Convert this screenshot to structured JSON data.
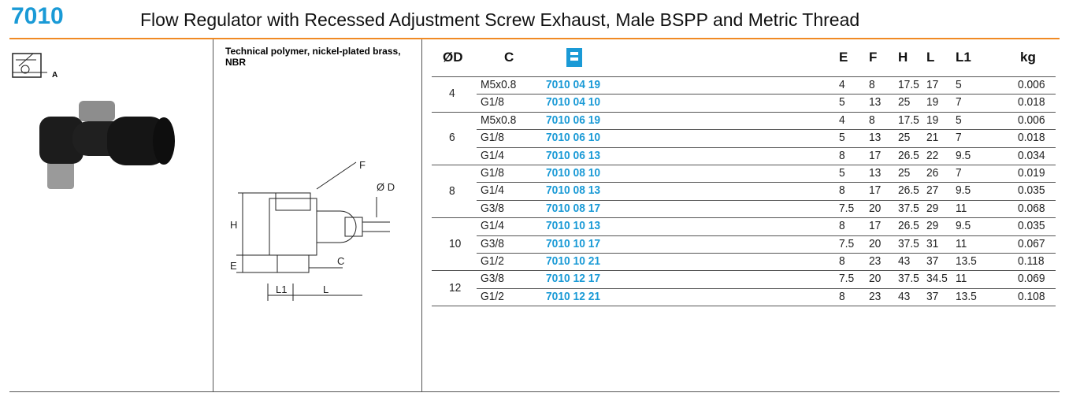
{
  "header": {
    "code": "7010",
    "title": "Flow Regulator with Recessed Adjustment Screw Exhaust, Male BSPP and Metric Thread"
  },
  "symbol": {
    "label": "A"
  },
  "material": "Technical polymer, nickel-plated brass, NBR",
  "diagram": {
    "labels": {
      "f": "F",
      "d": "Ø D",
      "h": "H",
      "e": "E",
      "c": "C",
      "l1": "L1",
      "l": "L"
    }
  },
  "table": {
    "headers": [
      "ØD",
      "C",
      "E",
      "F",
      "H",
      "L",
      "L1",
      "kg"
    ],
    "groups": [
      {
        "d": "4",
        "rows": [
          [
            "M5x0.8",
            "7010 04 19",
            "4",
            "8",
            "17.5",
            "17",
            "5",
            "0.006"
          ],
          [
            "G1/8",
            "7010 04 10",
            "5",
            "13",
            "25",
            "19",
            "7",
            "0.018"
          ]
        ]
      },
      {
        "d": "6",
        "rows": [
          [
            "M5x0.8",
            "7010 06 19",
            "4",
            "8",
            "17.5",
            "19",
            "5",
            "0.006"
          ],
          [
            "G1/8",
            "7010 06 10",
            "5",
            "13",
            "25",
            "21",
            "7",
            "0.018"
          ],
          [
            "G1/4",
            "7010 06 13",
            "8",
            "17",
            "26.5",
            "22",
            "9.5",
            "0.034"
          ]
        ]
      },
      {
        "d": "8",
        "rows": [
          [
            "G1/8",
            "7010 08 10",
            "5",
            "13",
            "25",
            "26",
            "7",
            "0.019"
          ],
          [
            "G1/4",
            "7010 08 13",
            "8",
            "17",
            "26.5",
            "27",
            "9.5",
            "0.035"
          ],
          [
            "G3/8",
            "7010 08 17",
            "7.5",
            "20",
            "37.5",
            "29",
            "11",
            "0.068"
          ]
        ]
      },
      {
        "d": "10",
        "rows": [
          [
            "G1/4",
            "7010 10 13",
            "8",
            "17",
            "26.5",
            "29",
            "9.5",
            "0.035"
          ],
          [
            "G3/8",
            "7010 10 17",
            "7.5",
            "20",
            "37.5",
            "31",
            "11",
            "0.067"
          ],
          [
            "G1/2",
            "7010 10 21",
            "8",
            "23",
            "43",
            "37",
            "13.5",
            "0.118"
          ]
        ]
      },
      {
        "d": "12",
        "rows": [
          [
            "G3/8",
            "7010 12 17",
            "7.5",
            "20",
            "37.5",
            "34.5",
            "11",
            "0.069"
          ],
          [
            "G1/2",
            "7010 12 21",
            "8",
            "23",
            "43",
            "37",
            "13.5",
            "0.108"
          ]
        ]
      }
    ]
  }
}
